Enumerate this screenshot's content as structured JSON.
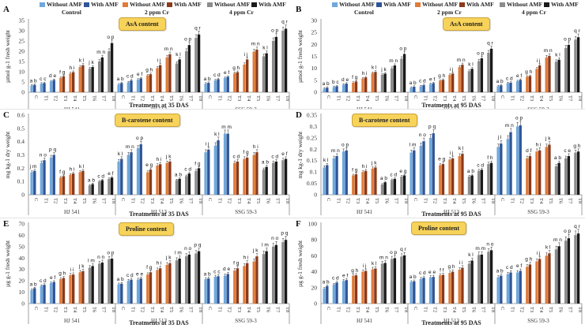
{
  "legend": {
    "items": [
      {
        "label": "Without AMF",
        "color": "#6fa8dc"
      },
      {
        "label": "With AMF",
        "color": "#2f5597"
      },
      {
        "label": "Without AMF",
        "color": "#e07b39"
      },
      {
        "label": "With AMF",
        "color": "#8b3a1a"
      },
      {
        "label": "Without AMF",
        "color": "#8c8c8c"
      },
      {
        "label": "With AMF",
        "color": "#1a1a1a"
      }
    ],
    "groups": [
      "Control",
      "2 ppm Cr",
      "4 ppm Cr"
    ]
  },
  "colors": {
    "control_without": "#6fa8dc",
    "control_with": "#2f5597",
    "cr2_without": "#e07b39",
    "cr2_with": "#8b3a1a",
    "cr4_without": "#8c8c8c",
    "cr4_with": "#1a1a1a",
    "badge": "#f7d35a"
  },
  "chart_data": [
    {
      "panel": "A",
      "type": "bar",
      "title": "AsA content",
      "ylabel": "µmol g-1 fresh weight",
      "xlabel": "Treatments at 35 DAS",
      "ylim": [
        0,
        35
      ],
      "yticks": [
        0,
        5,
        10,
        15,
        20,
        25,
        30,
        35
      ],
      "cultivars": [
        "HJ 541",
        "HJ 513",
        "SSG 59-3"
      ],
      "categories": [
        "C",
        "T1",
        "T2",
        "T3",
        "T4",
        "T5",
        "T6",
        "T7",
        "T8"
      ],
      "series": [
        {
          "cultivar": "HJ 541",
          "without": [
            3.3,
            4.2,
            5.3,
            7.0,
            9.2,
            12.3,
            11.5,
            15.0,
            20.0
          ],
          "with": [
            3.6,
            4.5,
            6.0,
            7.8,
            9.8,
            13.2,
            12.3,
            17.0,
            24.0
          ],
          "labels": [
            "ab",
            "cc",
            "de",
            "fg",
            "hi",
            "kl",
            "jk",
            "mn",
            "op"
          ]
        },
        {
          "cultivar": "HJ 513",
          "without": [
            3.8,
            4.8,
            6.2,
            8.2,
            11.8,
            17.0,
            14.0,
            20.0,
            26.5
          ],
          "with": [
            4.5,
            5.8,
            6.8,
            8.8,
            13.2,
            18.5,
            16.0,
            23.0,
            28.2
          ],
          "labels": [
            "ab",
            "cd",
            "ef",
            "gh",
            "ij",
            "mn",
            "kl",
            "op",
            "qr"
          ]
        },
        {
          "cultivar": "SSG 59-3",
          "without": [
            4.2,
            5.8,
            7.0,
            9.3,
            13.5,
            19.8,
            17.5,
            25.0,
            30.0
          ],
          "with": [
            4.6,
            6.4,
            7.6,
            9.8,
            16.0,
            20.8,
            19.0,
            27.0,
            31.0
          ],
          "labels": [
            "ab",
            "cd",
            "ef",
            "gh",
            "ij",
            "mn",
            "kl",
            "op",
            "qr"
          ]
        }
      ]
    },
    {
      "panel": "B",
      "type": "bar",
      "title": "AsA content",
      "ylabel": "µmol g-1 fresh weight",
      "xlabel": "Treatments at 95 DAS",
      "ylim": [
        0,
        30
      ],
      "yticks": [
        0,
        5,
        10,
        15,
        20,
        25,
        30
      ],
      "cultivars": [
        "HJ 541",
        "HJ 513",
        "SSG 59-3"
      ],
      "categories": [
        "C",
        "T1",
        "T2",
        "T3",
        "T4",
        "T5",
        "T6",
        "T7",
        "T8"
      ],
      "series": [
        {
          "cultivar": "HJ 541",
          "without": [
            1.5,
            2.2,
            3.2,
            4.0,
            5.8,
            8.0,
            7.3,
            10.0,
            14.0
          ],
          "with": [
            1.9,
            2.5,
            3.6,
            4.5,
            6.2,
            8.5,
            7.8,
            11.2,
            16.0
          ],
          "labels": [
            "ab",
            "bc",
            "de",
            "fg",
            "hi",
            "kl",
            "jk",
            "mn",
            "op"
          ]
        },
        {
          "cultivar": "HJ 513",
          "without": [
            1.9,
            2.5,
            3.4,
            4.8,
            7.3,
            10.5,
            8.8,
            13.0,
            16.5
          ],
          "with": [
            2.3,
            3.0,
            3.8,
            5.2,
            7.8,
            11.5,
            9.8,
            14.2,
            18.2
          ],
          "labels": [
            "ab",
            "cd",
            "ef",
            "gh",
            "ij",
            "mn",
            "kl",
            "op",
            "qr"
          ]
        },
        {
          "cultivar": "SSG 59-3",
          "without": [
            2.5,
            3.8,
            4.6,
            6.5,
            9.8,
            14.5,
            12.8,
            18.5,
            22.0
          ],
          "with": [
            2.9,
            4.0,
            5.2,
            6.8,
            11.2,
            15.2,
            13.6,
            19.8,
            23.0
          ],
          "labels": [
            "ab",
            "cd",
            "ef",
            "gh",
            "ij",
            "mn",
            "kl",
            "op",
            "qr"
          ]
        }
      ]
    },
    {
      "panel": "C",
      "type": "bar",
      "title": "B-carotene content",
      "ylabel": "mg kg-1 dry weight",
      "xlabel": "Treatments at 35 DAS",
      "ylim": [
        0,
        0.6
      ],
      "yticks": [
        0,
        0.1,
        0.2,
        0.3,
        0.4,
        0.5,
        0.6
      ],
      "cultivars": [
        "HJ 541",
        "HJ 513",
        "SSG 59-3"
      ],
      "categories": [
        "C",
        "T1",
        "T2",
        "T3",
        "T4",
        "T5",
        "T6",
        "T7",
        "T8"
      ],
      "series": [
        {
          "cultivar": "HJ 541",
          "without": [
            0.17,
            0.24,
            0.28,
            0.13,
            0.15,
            0.17,
            0.07,
            0.1,
            0.12
          ],
          "with": [
            0.18,
            0.26,
            0.3,
            0.14,
            0.16,
            0.18,
            0.08,
            0.11,
            0.13
          ],
          "labels": [
            "jm",
            "no",
            "pq",
            "fg",
            "hi",
            "kl",
            "ab",
            "cd",
            "ef"
          ]
        },
        {
          "cultivar": "HJ 513",
          "without": [
            0.25,
            0.3,
            0.35,
            0.17,
            0.22,
            0.24,
            0.11,
            0.14,
            0.18
          ],
          "with": [
            0.27,
            0.32,
            0.38,
            0.19,
            0.23,
            0.25,
            0.12,
            0.16,
            0.2
          ],
          "labels": [
            "kl",
            "mn",
            "op",
            "eg",
            "hi",
            "jk",
            "ab",
            "cd",
            "fg"
          ]
        },
        {
          "cultivar": "SSG 59-3",
          "without": [
            0.32,
            0.37,
            0.46,
            0.24,
            0.27,
            0.3,
            0.19,
            0.24,
            0.26
          ],
          "with": [
            0.34,
            0.41,
            0.46,
            0.25,
            0.28,
            0.32,
            0.21,
            0.25,
            0.27
          ],
          "labels": [
            "ij",
            "kl",
            "mm",
            "cd",
            "fg",
            "hi",
            "ab",
            "cd",
            "ef"
          ]
        }
      ]
    },
    {
      "panel": "D",
      "type": "bar",
      "title": "B-carotene content",
      "ylabel": "mg kg-1 dry weight",
      "xlabel": "Treatments at 95 DAS",
      "ylim": [
        0,
        0.35
      ],
      "yticks": [
        0,
        0.05,
        0.1,
        0.15,
        0.2,
        0.25,
        0.3,
        0.35
      ],
      "cultivars": [
        "HJ 541",
        "HJ 513",
        "SSG 59-3"
      ],
      "categories": [
        "C",
        "T1",
        "T2",
        "T3",
        "T4",
        "T5",
        "T6",
        "T7",
        "T8"
      ],
      "series": [
        {
          "cultivar": "HJ 541",
          "without": [
            0.12,
            0.16,
            0.19,
            0.085,
            0.1,
            0.115,
            0.045,
            0.065,
            0.08
          ],
          "with": [
            0.13,
            0.17,
            0.195,
            0.09,
            0.105,
            0.12,
            0.055,
            0.07,
            0.085
          ],
          "labels": [
            "kl",
            "mn",
            "op",
            "fg",
            "hi",
            "jk",
            "ab",
            "cd",
            "eg"
          ]
        },
        {
          "cultivar": "HJ 513",
          "without": [
            0.185,
            0.215,
            0.25,
            0.13,
            0.155,
            0.17,
            0.08,
            0.105,
            0.135
          ],
          "with": [
            0.195,
            0.235,
            0.27,
            0.135,
            0.16,
            0.18,
            0.085,
            0.11,
            0.14
          ],
          "labels": [
            "lm",
            "no",
            "pq",
            "eg",
            "ij",
            "kl",
            "ab",
            "cd",
            "fh"
          ]
        },
        {
          "cultivar": "SSG 59-3",
          "without": [
            0.21,
            0.245,
            0.3,
            0.16,
            0.19,
            0.21,
            0.125,
            0.16,
            0.185
          ],
          "with": [
            0.225,
            0.275,
            0.305,
            0.17,
            0.195,
            0.22,
            0.14,
            0.17,
            0.19
          ],
          "labels": [
            "jl",
            "mn",
            "op",
            "df",
            "hi",
            "jk",
            "ab",
            "ce",
            "gh"
          ]
        }
      ]
    },
    {
      "panel": "E",
      "type": "bar",
      "title": "Proline content",
      "ylabel": "µg g-1 fresh weight",
      "xlabel": "Treatments at 35 DAS",
      "ylim": [
        0,
        70
      ],
      "yticks": [
        0,
        10,
        20,
        30,
        40,
        50,
        60,
        70
      ],
      "cultivars": [
        "HJ 541",
        "HJ 513",
        "SSG 59-3"
      ],
      "categories": [
        "C",
        "T1",
        "T2",
        "T3",
        "T4",
        "T5",
        "T6",
        "T7",
        "T8"
      ],
      "series": [
        {
          "cultivar": "HJ 541",
          "without": [
            12,
            15.5,
            18,
            21.5,
            25,
            27.5,
            31.5,
            35,
            39
          ],
          "with": [
            13.5,
            16.5,
            19,
            22.5,
            25.5,
            28.5,
            33,
            36,
            39.5
          ],
          "labels": [
            "ab",
            "cd",
            "ef",
            "gh",
            "ii",
            "jk",
            "lm",
            "nn",
            "op"
          ]
        },
        {
          "cultivar": "HJ 513",
          "without": [
            17,
            20,
            21,
            25.5,
            29.5,
            34,
            38,
            41.5,
            44
          ],
          "with": [
            17.5,
            21,
            22,
            27.5,
            31,
            35.5,
            39.5,
            43,
            46
          ],
          "labels": [
            "ab",
            "cd",
            "ee",
            "fg",
            "hi",
            "jk",
            "lm",
            "no",
            "pq"
          ]
        },
        {
          "cultivar": "SSG 59-3",
          "without": [
            21.5,
            23.5,
            24.5,
            29,
            33,
            37,
            43.5,
            50,
            54
          ],
          "with": [
            22,
            24,
            26,
            31,
            35.5,
            41.5,
            46,
            51.5,
            56
          ],
          "labels": [
            "ab",
            "cc",
            "de",
            "fg",
            "hi",
            "jk",
            "lm",
            "no",
            "pq"
          ]
        }
      ]
    },
    {
      "panel": "F",
      "type": "bar",
      "title": "Proline content",
      "ylabel": "µg g-1 fresh weight",
      "xlabel": "Treatments at 95 DAS",
      "ylim": [
        0,
        100
      ],
      "yticks": [
        0,
        20,
        40,
        60,
        80,
        100
      ],
      "cultivars": [
        "HJ 541",
        "HJ 513",
        "SSG 59-3"
      ],
      "categories": [
        "C",
        "T1",
        "T2",
        "T3",
        "T4",
        "T5",
        "T6",
        "T7",
        "T8"
      ],
      "series": [
        {
          "cultivar": "HJ 541",
          "without": [
            19,
            24,
            28.5,
            35,
            40,
            43,
            50,
            56,
            59
          ],
          "with": [
            22,
            26.5,
            29.5,
            35.5,
            41,
            44,
            51,
            57,
            60.5
          ],
          "labels": [
            "ab",
            "cd",
            "ef",
            "gh",
            "ij",
            "kl",
            "mn",
            "op",
            "qr"
          ]
        },
        {
          "cultivar": "HJ 513",
          "without": [
            27,
            31,
            33,
            35.5,
            38.5,
            42.5,
            50,
            61,
            65
          ],
          "with": [
            28,
            32.5,
            33.5,
            36,
            40,
            45,
            54,
            61.5,
            67
          ],
          "labels": [
            "ab",
            "cd",
            "ee",
            "ff",
            "gh",
            "ii",
            "kl",
            "mm",
            "no"
          ]
        },
        {
          "cultivar": "SSG 59-3",
          "without": [
            33,
            37,
            39,
            46,
            53,
            60,
            68,
            79,
            86
          ],
          "with": [
            35,
            39,
            41,
            49,
            56,
            63,
            72,
            82,
            88
          ],
          "labels": [
            "ab",
            "cd",
            "ef",
            "gh",
            "ij",
            "kl",
            "mn",
            "op",
            "qr"
          ]
        }
      ]
    }
  ]
}
